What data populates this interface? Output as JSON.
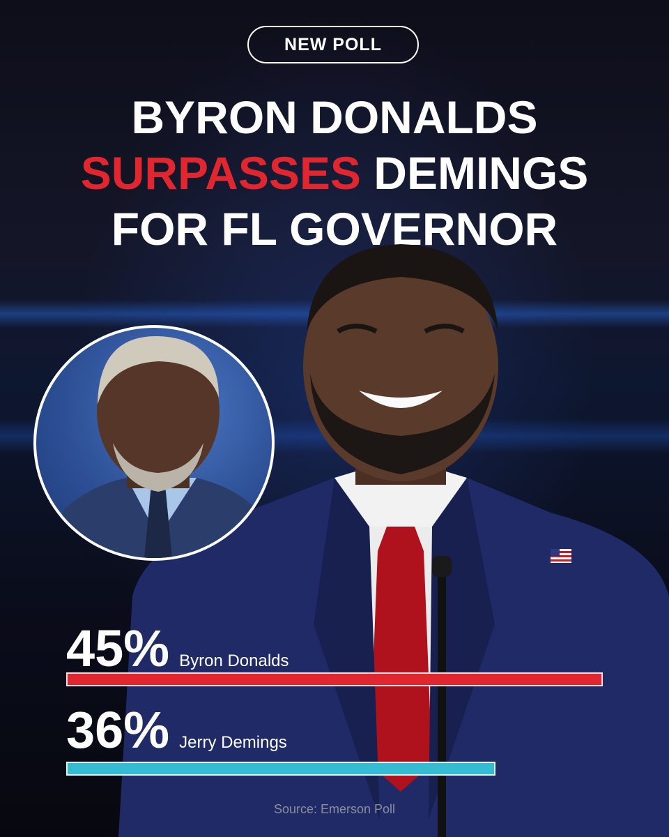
{
  "badge": {
    "label": "NEW POLL"
  },
  "headline": {
    "line1": "BYRON DONALDS",
    "line2_highlight": "SURPASSES",
    "line2_rest": " DEMINGS",
    "line3": "FOR FL GOVERNOR"
  },
  "chart_data": {
    "type": "bar",
    "orientation": "horizontal",
    "categories": [
      "Byron Donalds",
      "Jerry Demings"
    ],
    "values": [
      45,
      36
    ],
    "value_labels": [
      "45%",
      "36%"
    ],
    "xlim": [
      0,
      50
    ],
    "grid": false,
    "colors": [
      "#e0262e",
      "#35bcd3"
    ]
  },
  "source": {
    "text": "Source: Emerson Poll"
  },
  "icons": {
    "flag": "us-flag-pin-icon"
  }
}
